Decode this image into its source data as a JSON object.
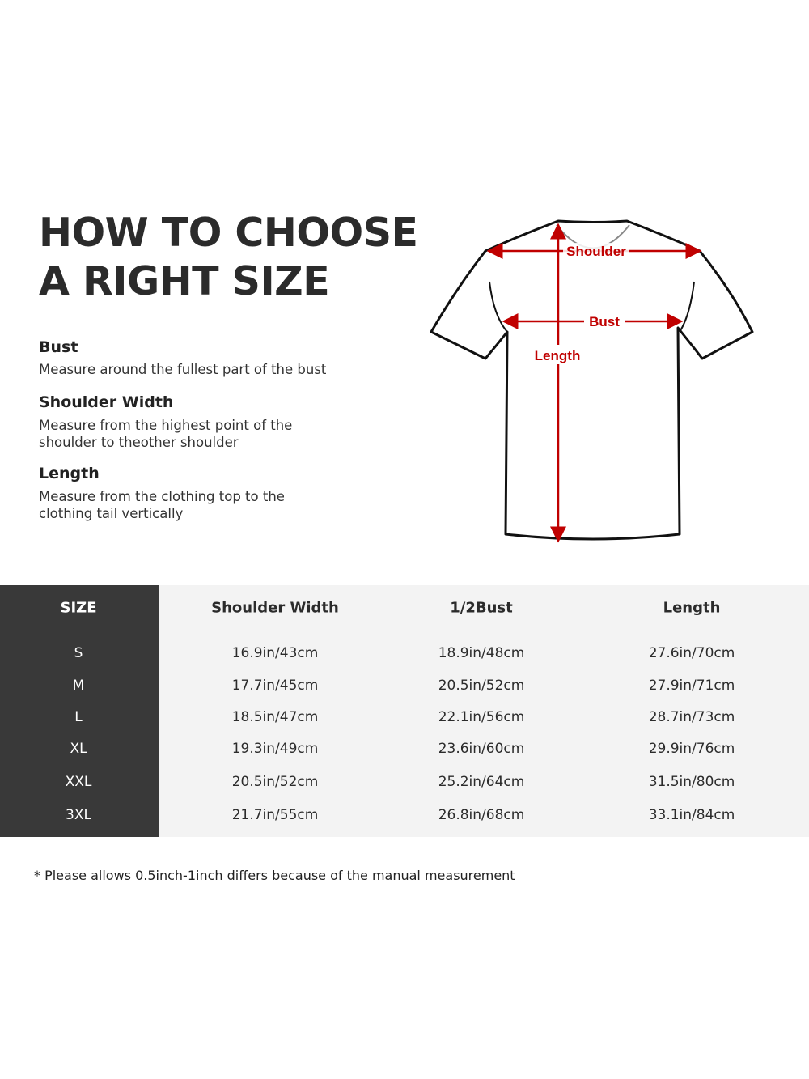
{
  "title": {
    "line1": "HOW TO CHOOSE",
    "line2": "A RIGHT SIZE"
  },
  "measures": [
    {
      "name": "Bust",
      "desc": "Measure around the fullest part of the bust"
    },
    {
      "name": "Shoulder Width",
      "desc": "Measure from the highest point of the shoulder to theother shoulder"
    },
    {
      "name": "Length",
      "desc": "Measure from the clothing top to the clothing tail vertically"
    }
  ],
  "diagram": {
    "shoulder": "Shoulder",
    "bust": "Bust",
    "length": "Length",
    "arrow_color": "#c00000"
  },
  "table": {
    "headers": [
      "SIZE",
      "Shoulder Width",
      "1/2Bust",
      "Length"
    ],
    "rows": [
      [
        "S",
        "16.9in/43cm",
        "18.9in/48cm",
        "27.6in/70cm"
      ],
      [
        "M",
        "17.7in/45cm",
        "20.5in/52cm",
        "27.9in/71cm"
      ],
      [
        "L",
        "18.5in/47cm",
        "22.1in/56cm",
        "28.7in/73cm"
      ],
      [
        "XL",
        "19.3in/49cm",
        "23.6in/60cm",
        "29.9in/76cm"
      ],
      [
        "XXL",
        "20.5in/52cm",
        "25.2in/64cm",
        "31.5in/80cm"
      ],
      [
        "3XL",
        "21.7in/55cm",
        "26.8in/68cm",
        "33.1in/84cm"
      ]
    ]
  },
  "note": "* Please allows 0.5inch-1inch differs because of the  manual measurement"
}
